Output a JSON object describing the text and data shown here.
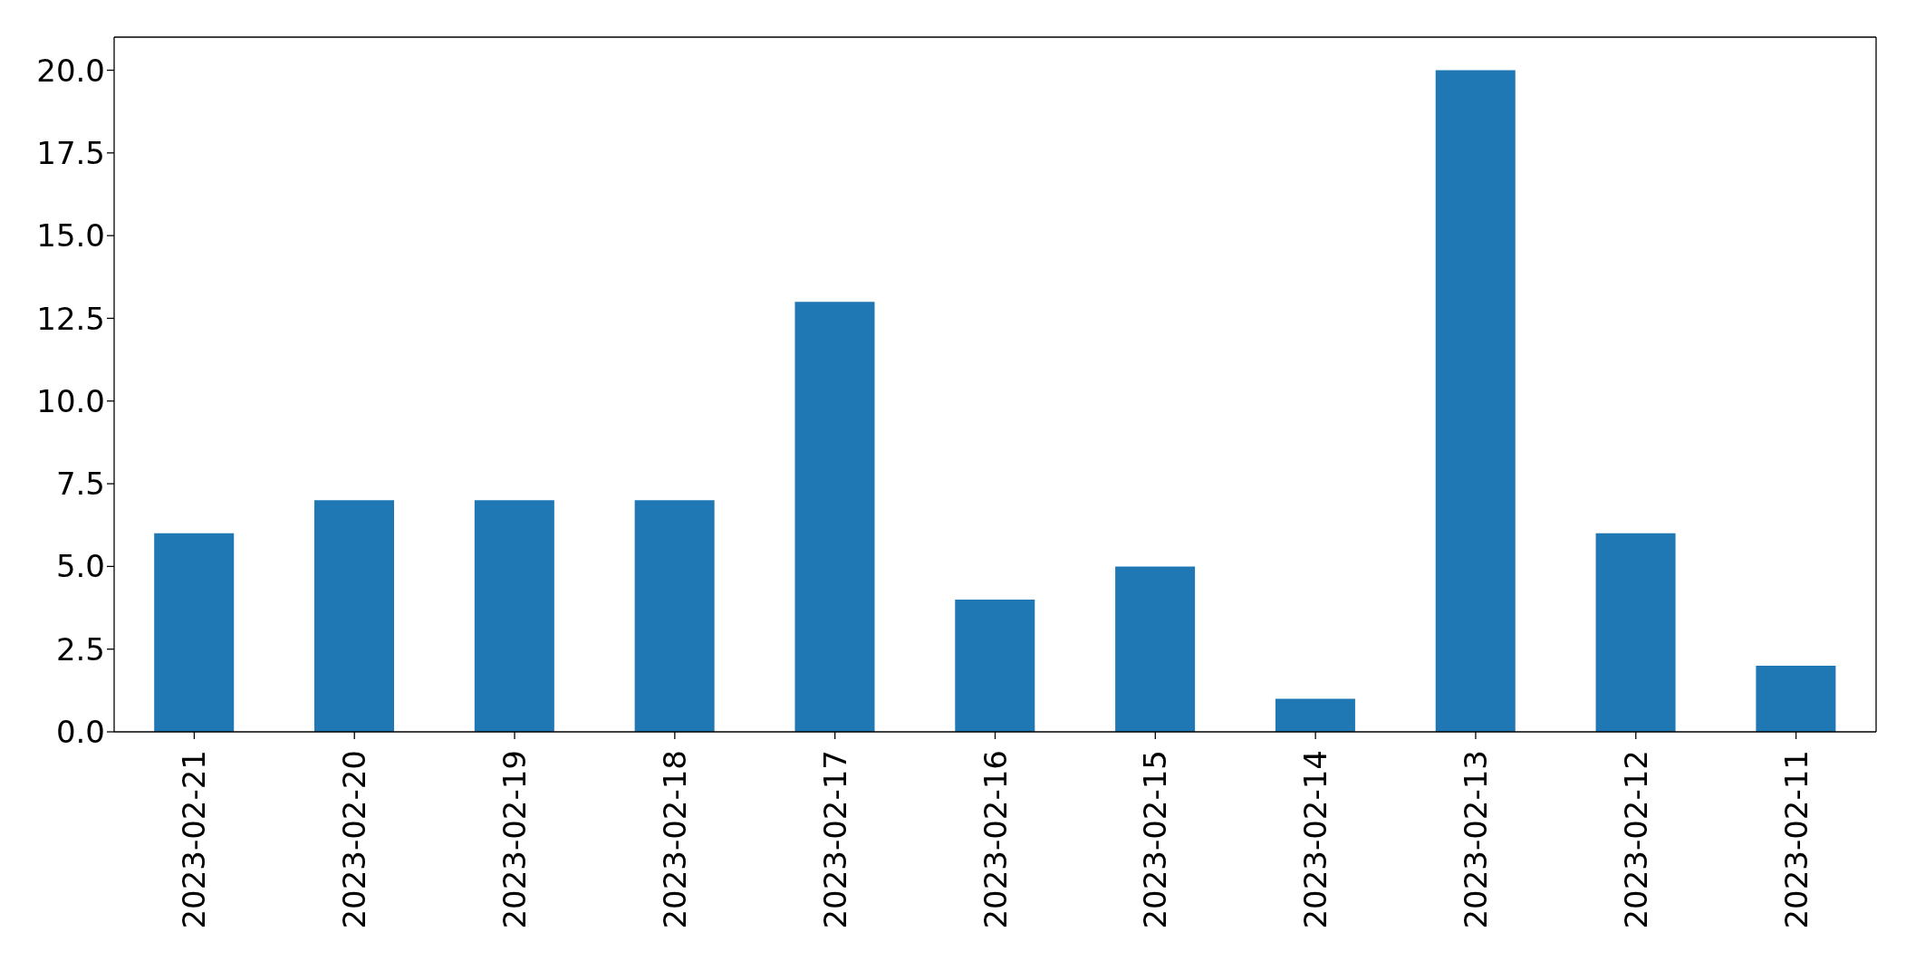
{
  "chart_data": {
    "type": "bar",
    "categories": [
      "2023-02-21",
      "2023-02-20",
      "2023-02-19",
      "2023-02-18",
      "2023-02-17",
      "2023-02-16",
      "2023-02-15",
      "2023-02-14",
      "2023-02-13",
      "2023-02-12",
      "2023-02-11"
    ],
    "values": [
      6,
      7,
      7,
      7,
      13,
      4,
      5,
      1,
      20,
      6,
      2
    ],
    "color": "#1f77b4",
    "ylim": [
      0,
      21
    ],
    "yticks": [
      {
        "value": 0,
        "label": "0.0"
      },
      {
        "value": 2.5,
        "label": "2.5"
      },
      {
        "value": 5,
        "label": "5.0"
      },
      {
        "value": 7.5,
        "label": "7.5"
      },
      {
        "value": 10,
        "label": "10.0"
      },
      {
        "value": 12.5,
        "label": "12.5"
      },
      {
        "value": 15,
        "label": "15.0"
      },
      {
        "value": 17.5,
        "label": "17.5"
      },
      {
        "value": 20,
        "label": "20.0"
      }
    ],
    "grid": false
  }
}
